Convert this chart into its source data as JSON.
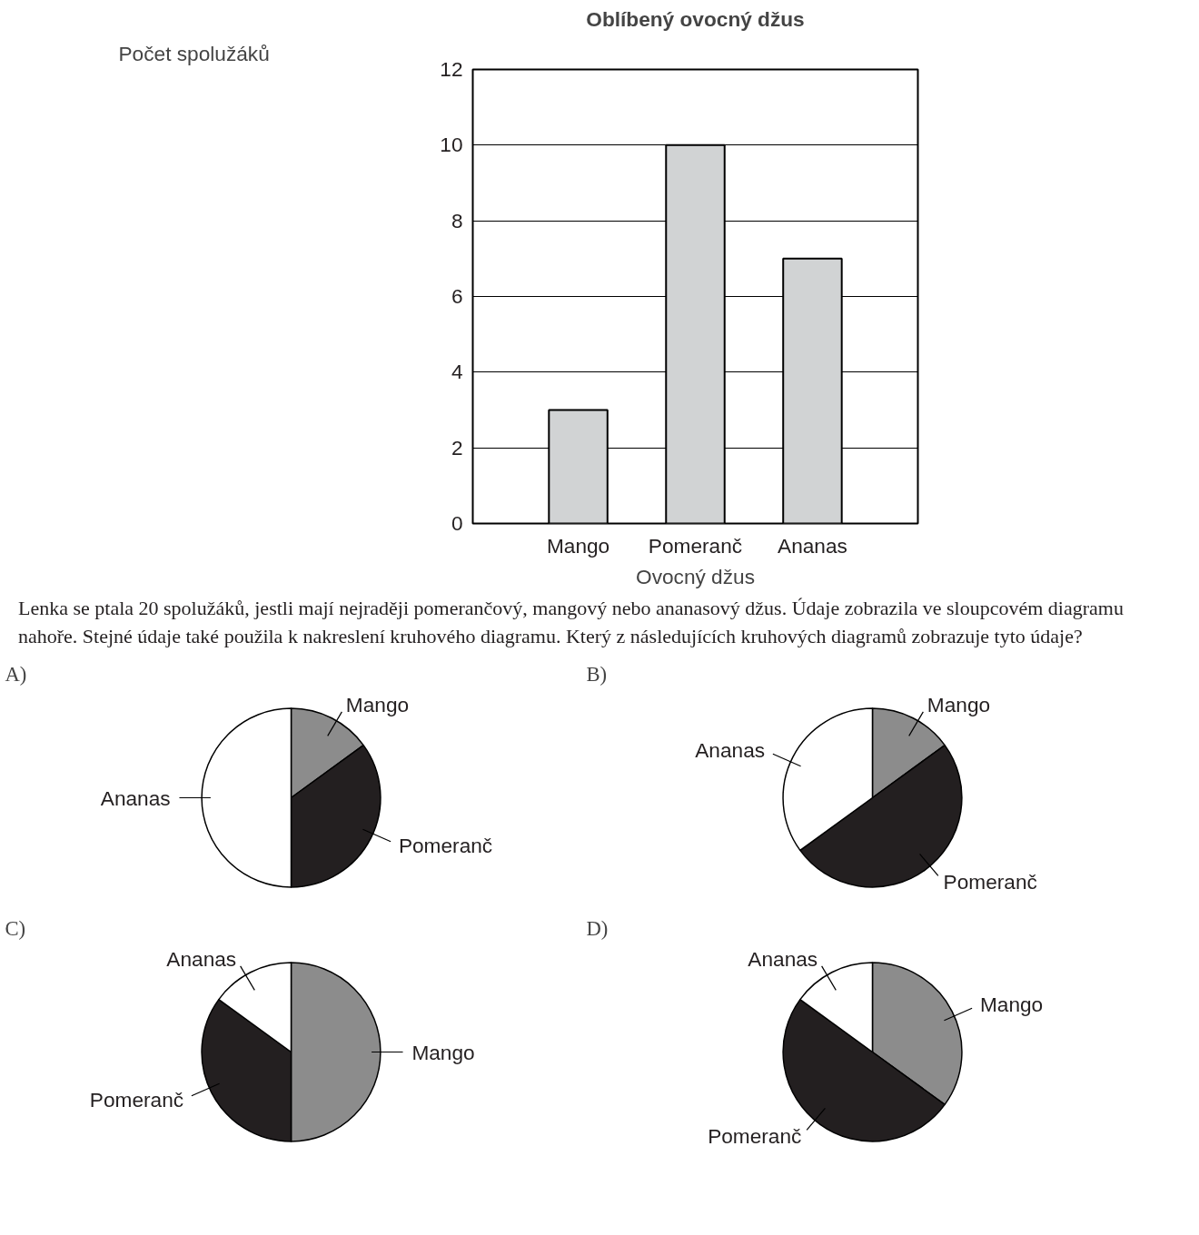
{
  "chart_data": [
    {
      "type": "bar",
      "title": "Oblíbený ovocný džus",
      "xlabel": "Ovocný džus",
      "ylabel": "Počet spolužáků",
      "categories": [
        "Mango",
        "Pomeranč",
        "Ananas"
      ],
      "values": [
        3,
        10,
        7
      ],
      "color": "#d1d3d4",
      "ylim": [
        0,
        12
      ],
      "yticks": [
        0,
        2,
        4,
        6,
        8,
        10,
        12
      ],
      "grid": "y",
      "annotations": [
        "Lenka se ptala 20 spolužáků, jestli mají nejraději pomerančový, mangový nebo ananasový džus. Údaje zobrazila ve sloupcovém diagramu nahoře. Stejné údaje také použila k nakreslení kruhového diagramu. Který z následujících kruhových diagramů zobrazuje tyto údaje?"
      ]
    },
    {
      "type": "pie",
      "title": "A)",
      "categories": [
        "Mango",
        "Pomeranč",
        "Ananas"
      ],
      "values": [
        15,
        35,
        50
      ],
      "colors": [
        "#8c8c8c",
        "#231f20",
        "#ffffff"
      ]
    },
    {
      "type": "pie",
      "title": "B)",
      "categories": [
        "Mango",
        "Pomeranč",
        "Ananas"
      ],
      "values": [
        15,
        50,
        35
      ],
      "colors": [
        "#8c8c8c",
        "#231f20",
        "#ffffff"
      ]
    },
    {
      "type": "pie",
      "title": "C)",
      "categories": [
        "Mango",
        "Pomeranč",
        "Ananas"
      ],
      "values": [
        50,
        35,
        15
      ],
      "colors": [
        "#8c8c8c",
        "#231f20",
        "#ffffff"
      ]
    },
    {
      "type": "pie",
      "title": "D)",
      "categories": [
        "Mango",
        "Pomeranč",
        "Ananas"
      ],
      "values": [
        35,
        50,
        15
      ],
      "colors": [
        "#8c8c8c",
        "#231f20",
        "#ffffff"
      ]
    }
  ]
}
